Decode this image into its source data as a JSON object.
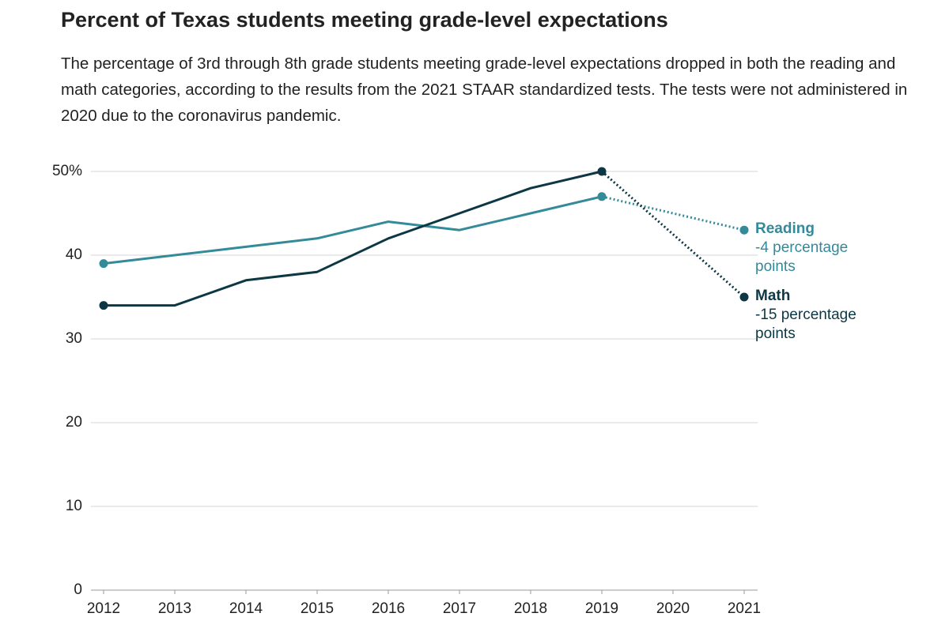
{
  "chart_data": {
    "type": "line",
    "title": "Percent of Texas students meeting grade-level expectations",
    "subtitle": "The percentage of 3rd through 8th grade students meeting grade-level expectations dropped in both the reading and math categories, according to the results from the 2021 STAAR standardized tests. The tests were not administered in 2020 due to the coronavirus pandemic.",
    "x": [
      2012,
      2013,
      2014,
      2015,
      2016,
      2017,
      2018,
      2019,
      2020,
      2021
    ],
    "series": [
      {
        "name": "Reading",
        "color": "#338a99",
        "note": "-4 percentage points",
        "values": [
          39,
          40,
          41,
          42,
          44,
          43,
          45,
          47,
          null,
          43
        ]
      },
      {
        "name": "Math",
        "color": "#0c3744",
        "note": "-15 percentage points",
        "values": [
          34,
          34,
          37,
          38,
          42,
          45,
          48,
          50,
          null,
          35
        ]
      }
    ],
    "xlim": [
      2012,
      2021
    ],
    "xticks": [
      2012,
      2013,
      2014,
      2015,
      2016,
      2017,
      2018,
      2019,
      2020,
      2021
    ],
    "ylim": [
      0,
      50
    ],
    "yticks": [
      0,
      10,
      20,
      30,
      40,
      {
        "value": 50,
        "label": "50%"
      }
    ],
    "grid": true
  }
}
